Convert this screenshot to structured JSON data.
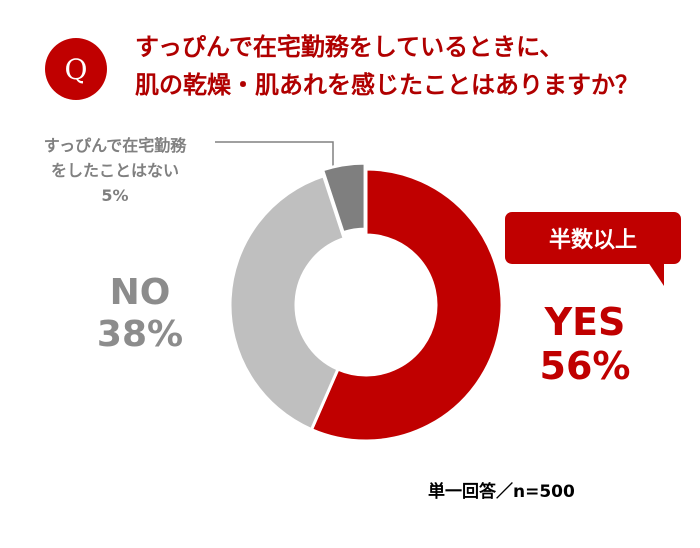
{
  "header": {
    "badge": "Q",
    "question_lines": [
      "すっぴんで在宅勤務をしているときに、",
      "肌の乾燥・肌あれを感じたことはありますか？"
    ]
  },
  "labels": {
    "other_lines": [
      "すっぴんで在宅勤務",
      "をしたことはない",
      "5%"
    ],
    "no_lines": [
      "NO",
      "38%"
    ],
    "yes_lines": [
      "YES",
      "56%"
    ],
    "callout": "半数以上"
  },
  "footer": {
    "note": "単一回答／n=500"
  },
  "colors": {
    "yes": "#c00000",
    "no": "#bfbfbf",
    "other": "#7f7f7f",
    "title": "#b00000"
  },
  "chart_data": {
    "type": "pie",
    "style": "donut",
    "title": "すっぴんで在宅勤務をしているときに、肌の乾燥・肌あれを感じたことはありますか？",
    "categories": [
      "YES",
      "NO",
      "すっぴんで在宅勤務をしたことはない"
    ],
    "values": [
      56,
      38,
      5
    ],
    "unit": "%",
    "annotations": [
      "半数以上",
      "単一回答／n=500"
    ],
    "colors": [
      "#c00000",
      "#bfbfbf",
      "#7f7f7f"
    ]
  }
}
